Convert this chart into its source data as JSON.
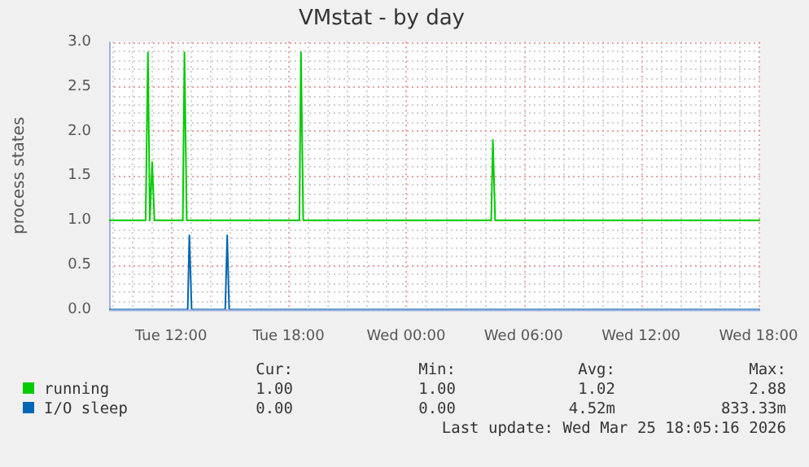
{
  "chart_data": {
    "type": "line",
    "title": "VMstat - by day",
    "ylabel": "process states",
    "xlim": [
      "2026-03-24T08:50",
      "2026-03-25T18:05"
    ],
    "xticks": [
      {
        "value": "2026-03-24T12:00",
        "label": "Tue 12:00"
      },
      {
        "value": "2026-03-24T18:00",
        "label": "Tue 18:00"
      },
      {
        "value": "2026-03-25T00:00",
        "label": "Wed 00:00"
      },
      {
        "value": "2026-03-25T06:00",
        "label": "Wed 06:00"
      },
      {
        "value": "2026-03-25T12:00",
        "label": "Wed 12:00"
      },
      {
        "value": "2026-03-25T18:00",
        "label": "Wed 18:00"
      }
    ],
    "ylim": [
      0,
      3
    ],
    "yticks": [
      {
        "value": 0,
        "label": "0.0"
      },
      {
        "value": 0.5,
        "label": "0.5"
      },
      {
        "value": 1,
        "label": "1.0"
      },
      {
        "value": 1.5,
        "label": "1.5"
      },
      {
        "value": 2,
        "label": "2.0"
      },
      {
        "value": 2.5,
        "label": "2.5"
      },
      {
        "value": 3,
        "label": "3.0"
      }
    ],
    "series": [
      {
        "name": "running",
        "color": "#00cc00",
        "x": [
          "2026-03-24T08:50",
          "2026-03-24T10:42",
          "2026-03-24T10:49",
          "2026-03-24T10:55",
          "2026-03-24T11:02",
          "2026-03-24T11:09",
          "2026-03-24T12:36",
          "2026-03-24T12:41",
          "2026-03-24T12:48",
          "2026-03-24T18:33",
          "2026-03-24T18:38",
          "2026-03-24T18:45",
          "2026-03-25T04:21",
          "2026-03-25T04:26",
          "2026-03-25T04:33",
          "2026-03-25T18:05"
        ],
        "values": [
          1,
          1,
          2.88,
          1,
          1.65,
          1,
          1,
          2.88,
          1,
          1,
          2.88,
          1,
          1,
          1.9,
          1,
          1
        ]
      },
      {
        "name": "I/O sleep",
        "color": "#0066b3",
        "x": [
          "2026-03-24T08:50",
          "2026-03-24T12:51",
          "2026-03-24T12:56",
          "2026-03-24T13:03",
          "2026-03-24T14:46",
          "2026-03-24T14:52",
          "2026-03-24T14:58",
          "2026-03-25T18:05"
        ],
        "values": [
          0,
          0,
          0.83,
          0,
          0,
          0.83,
          0,
          0
        ]
      }
    ],
    "grid": true,
    "legend": "bottom",
    "marker": "none",
    "line_style": "solid",
    "annotations": [
      "Cur:",
      "Min:",
      "Avg:",
      "Max:",
      "1.00",
      "1.00",
      "1.02",
      "2.88",
      "0.00",
      "0.00",
      "4.52m",
      "833.33m",
      "Last update: Wed Mar 25 18:05:16 2026"
    ]
  }
}
